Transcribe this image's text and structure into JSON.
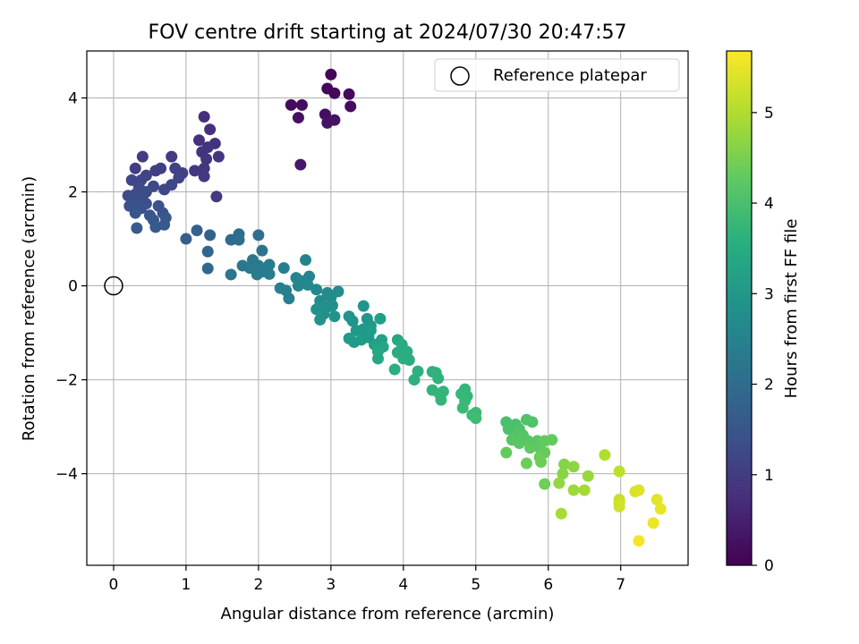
{
  "chart_data": {
    "type": "scatter",
    "title": "FOV centre drift starting at 2024/07/30 20:47:57",
    "xlabel": "Angular distance from reference (arcmin)",
    "ylabel": "Rotation from reference (arcmin)",
    "xlim": [
      -0.37,
      7.93
    ],
    "ylim": [
      -5.95,
      5.0
    ],
    "xticks": [
      0,
      1,
      2,
      3,
      4,
      5,
      6,
      7
    ],
    "yticks": [
      -4,
      -2,
      0,
      2,
      4
    ],
    "ytick_labels": [
      "−4",
      "−2",
      "0",
      "2",
      "4"
    ],
    "grid": true,
    "legend": {
      "placement": "top-right",
      "entries": [
        "Reference platepar"
      ]
    },
    "reference_point": {
      "x": 0,
      "y": 0,
      "label": "Reference platepar"
    },
    "colorbar": {
      "label": "Hours from first FF file",
      "colormap": "viridis",
      "range": [
        0,
        5.68
      ],
      "ticks": [
        0,
        1,
        2,
        3,
        4,
        5
      ]
    },
    "points": [
      {
        "x": 3.0,
        "y": 4.5,
        "c": 0.05
      },
      {
        "x": 2.95,
        "y": 4.2,
        "c": 0.08
      },
      {
        "x": 3.05,
        "y": 4.1,
        "c": 0.1
      },
      {
        "x": 3.25,
        "y": 4.08,
        "c": 0.12
      },
      {
        "x": 2.45,
        "y": 3.85,
        "c": 0.15
      },
      {
        "x": 2.6,
        "y": 3.85,
        "c": 0.17
      },
      {
        "x": 3.27,
        "y": 3.82,
        "c": 0.2
      },
      {
        "x": 2.92,
        "y": 3.65,
        "c": 0.22
      },
      {
        "x": 2.55,
        "y": 3.58,
        "c": 0.25
      },
      {
        "x": 3.05,
        "y": 3.53,
        "c": 0.27
      },
      {
        "x": 2.95,
        "y": 3.47,
        "c": 0.3
      },
      {
        "x": 2.58,
        "y": 2.58,
        "c": 0.35
      },
      {
        "x": 1.25,
        "y": 3.6,
        "c": 0.75
      },
      {
        "x": 1.33,
        "y": 3.33,
        "c": 0.78
      },
      {
        "x": 1.18,
        "y": 3.1,
        "c": 0.8
      },
      {
        "x": 1.4,
        "y": 3.03,
        "c": 0.82
      },
      {
        "x": 1.3,
        "y": 2.95,
        "c": 0.84
      },
      {
        "x": 1.22,
        "y": 2.85,
        "c": 0.86
      },
      {
        "x": 1.28,
        "y": 2.7,
        "c": 0.88
      },
      {
        "x": 1.45,
        "y": 2.75,
        "c": 0.9
      },
      {
        "x": 1.25,
        "y": 2.5,
        "c": 0.92
      },
      {
        "x": 1.12,
        "y": 2.45,
        "c": 0.94
      },
      {
        "x": 1.25,
        "y": 2.33,
        "c": 0.96
      },
      {
        "x": 1.42,
        "y": 1.9,
        "c": 0.98
      },
      {
        "x": 0.8,
        "y": 2.75,
        "c": 1.0
      },
      {
        "x": 0.4,
        "y": 2.75,
        "c": 1.02
      },
      {
        "x": 0.3,
        "y": 2.5,
        "c": 1.04
      },
      {
        "x": 0.65,
        "y": 2.5,
        "c": 1.06
      },
      {
        "x": 0.58,
        "y": 2.45,
        "c": 1.08
      },
      {
        "x": 0.85,
        "y": 2.5,
        "c": 1.1
      },
      {
        "x": 0.95,
        "y": 2.4,
        "c": 1.12
      },
      {
        "x": 0.9,
        "y": 2.3,
        "c": 1.14
      },
      {
        "x": 0.45,
        "y": 2.35,
        "c": 1.16
      },
      {
        "x": 0.38,
        "y": 2.25,
        "c": 1.18
      },
      {
        "x": 0.25,
        "y": 2.25,
        "c": 1.2
      },
      {
        "x": 0.8,
        "y": 2.15,
        "c": 1.22
      },
      {
        "x": 0.7,
        "y": 2.05,
        "c": 1.24
      },
      {
        "x": 0.55,
        "y": 2.12,
        "c": 1.26
      },
      {
        "x": 0.35,
        "y": 2.1,
        "c": 1.28
      },
      {
        "x": 0.45,
        "y": 2.0,
        "c": 1.3
      },
      {
        "x": 0.2,
        "y": 1.92,
        "c": 1.32
      },
      {
        "x": 0.3,
        "y": 1.95,
        "c": 1.34
      },
      {
        "x": 0.4,
        "y": 1.88,
        "c": 1.36
      },
      {
        "x": 0.3,
        "y": 1.8,
        "c": 1.38
      },
      {
        "x": 0.45,
        "y": 1.75,
        "c": 1.4
      },
      {
        "x": 0.22,
        "y": 1.7,
        "c": 1.42
      },
      {
        "x": 0.38,
        "y": 1.65,
        "c": 1.44
      },
      {
        "x": 0.62,
        "y": 1.7,
        "c": 1.46
      },
      {
        "x": 0.68,
        "y": 1.55,
        "c": 1.48
      },
      {
        "x": 0.5,
        "y": 1.5,
        "c": 1.5
      },
      {
        "x": 0.3,
        "y": 1.55,
        "c": 1.52
      },
      {
        "x": 0.72,
        "y": 1.45,
        "c": 1.54
      },
      {
        "x": 0.55,
        "y": 1.4,
        "c": 1.56
      },
      {
        "x": 0.7,
        "y": 1.3,
        "c": 1.58
      },
      {
        "x": 0.58,
        "y": 1.25,
        "c": 1.6
      },
      {
        "x": 0.32,
        "y": 1.23,
        "c": 1.62
      },
      {
        "x": 1.0,
        "y": 1.0,
        "c": 1.7
      },
      {
        "x": 1.15,
        "y": 1.18,
        "c": 1.75
      },
      {
        "x": 1.33,
        "y": 1.08,
        "c": 1.8
      },
      {
        "x": 1.3,
        "y": 0.73,
        "c": 1.85
      },
      {
        "x": 1.3,
        "y": 0.37,
        "c": 1.9
      },
      {
        "x": 1.62,
        "y": 0.98,
        "c": 1.95
      },
      {
        "x": 1.73,
        "y": 1.1,
        "c": 2.0
      },
      {
        "x": 1.73,
        "y": 0.98,
        "c": 2.05
      },
      {
        "x": 2.0,
        "y": 1.08,
        "c": 2.1
      },
      {
        "x": 2.05,
        "y": 0.75,
        "c": 2.15
      },
      {
        "x": 1.62,
        "y": 0.24,
        "c": 2.2
      },
      {
        "x": 1.78,
        "y": 0.43,
        "c": 2.25
      },
      {
        "x": 1.92,
        "y": 0.55,
        "c": 2.28
      },
      {
        "x": 1.88,
        "y": 0.38,
        "c": 2.3
      },
      {
        "x": 2.0,
        "y": 0.43,
        "c": 2.32
      },
      {
        "x": 2.05,
        "y": 0.3,
        "c": 2.34
      },
      {
        "x": 1.98,
        "y": 0.24,
        "c": 2.36
      },
      {
        "x": 2.15,
        "y": 0.45,
        "c": 2.38
      },
      {
        "x": 2.15,
        "y": 0.25,
        "c": 2.4
      },
      {
        "x": 2.35,
        "y": 0.38,
        "c": 2.42
      },
      {
        "x": 2.3,
        "y": -0.05,
        "c": 2.45
      },
      {
        "x": 2.38,
        "y": -0.1,
        "c": 2.48
      },
      {
        "x": 2.42,
        "y": -0.27,
        "c": 2.5
      },
      {
        "x": 2.65,
        "y": 0.55,
        "c": 2.55
      },
      {
        "x": 2.7,
        "y": 0.2,
        "c": 2.58
      },
      {
        "x": 2.52,
        "y": 0.17,
        "c": 2.6
      },
      {
        "x": 2.6,
        "y": 0.1,
        "c": 2.62
      },
      {
        "x": 2.55,
        "y": 0.0,
        "c": 2.64
      },
      {
        "x": 2.68,
        "y": 0.02,
        "c": 2.66
      },
      {
        "x": 2.8,
        "y": -0.08,
        "c": 2.68
      },
      {
        "x": 2.95,
        "y": -0.15,
        "c": 2.7
      },
      {
        "x": 2.85,
        "y": -0.32,
        "c": 2.72
      },
      {
        "x": 3.0,
        "y": -0.25,
        "c": 2.74
      },
      {
        "x": 3.1,
        "y": -0.12,
        "c": 2.76
      },
      {
        "x": 2.95,
        "y": -0.45,
        "c": 2.78
      },
      {
        "x": 2.85,
        "y": -0.42,
        "c": 2.8
      },
      {
        "x": 3.02,
        "y": -0.42,
        "c": 2.82
      },
      {
        "x": 2.8,
        "y": -0.5,
        "c": 2.84
      },
      {
        "x": 2.9,
        "y": -0.6,
        "c": 2.86
      },
      {
        "x": 2.85,
        "y": -0.72,
        "c": 2.88
      },
      {
        "x": 3.05,
        "y": -0.65,
        "c": 2.9
      },
      {
        "x": 3.25,
        "y": -0.65,
        "c": 2.92
      },
      {
        "x": 3.3,
        "y": -0.75,
        "c": 2.94
      },
      {
        "x": 3.45,
        "y": -0.43,
        "c": 2.96
      },
      {
        "x": 3.5,
        "y": -0.7,
        "c": 2.98
      },
      {
        "x": 3.35,
        "y": -0.95,
        "c": 3.0
      },
      {
        "x": 3.55,
        "y": -0.85,
        "c": 3.02
      },
      {
        "x": 3.45,
        "y": -0.92,
        "c": 3.04
      },
      {
        "x": 3.25,
        "y": -1.12,
        "c": 3.06
      },
      {
        "x": 3.32,
        "y": -1.2,
        "c": 3.08
      },
      {
        "x": 3.42,
        "y": -1.15,
        "c": 3.1
      },
      {
        "x": 3.52,
        "y": -1.1,
        "c": 3.12
      },
      {
        "x": 3.55,
        "y": -0.95,
        "c": 3.14
      },
      {
        "x": 3.68,
        "y": -0.7,
        "c": 3.16
      },
      {
        "x": 3.6,
        "y": -1.25,
        "c": 3.2
      },
      {
        "x": 3.7,
        "y": -1.15,
        "c": 3.24
      },
      {
        "x": 3.65,
        "y": -1.28,
        "c": 3.28
      },
      {
        "x": 3.72,
        "y": -1.3,
        "c": 3.32
      },
      {
        "x": 3.65,
        "y": -1.55,
        "c": 3.36
      },
      {
        "x": 3.65,
        "y": -1.4,
        "c": 3.38
      },
      {
        "x": 3.92,
        "y": -1.15,
        "c": 3.42
      },
      {
        "x": 3.98,
        "y": -1.25,
        "c": 3.45
      },
      {
        "x": 3.92,
        "y": -1.42,
        "c": 3.48
      },
      {
        "x": 4.05,
        "y": -1.4,
        "c": 3.5
      },
      {
        "x": 4.0,
        "y": -1.55,
        "c": 3.52
      },
      {
        "x": 4.08,
        "y": -1.58,
        "c": 3.54
      },
      {
        "x": 3.88,
        "y": -1.78,
        "c": 3.56
      },
      {
        "x": 4.2,
        "y": -1.82,
        "c": 3.58
      },
      {
        "x": 4.15,
        "y": -2.0,
        "c": 3.6
      },
      {
        "x": 4.4,
        "y": -1.83,
        "c": 3.62
      },
      {
        "x": 4.45,
        "y": -1.85,
        "c": 3.64
      },
      {
        "x": 4.48,
        "y": -1.97,
        "c": 3.66
      },
      {
        "x": 4.4,
        "y": -2.22,
        "c": 3.68
      },
      {
        "x": 4.55,
        "y": -2.25,
        "c": 3.7
      },
      {
        "x": 4.5,
        "y": -2.3,
        "c": 3.72
      },
      {
        "x": 4.52,
        "y": -2.43,
        "c": 3.74
      },
      {
        "x": 4.85,
        "y": -2.2,
        "c": 3.76
      },
      {
        "x": 4.8,
        "y": -2.3,
        "c": 3.78
      },
      {
        "x": 4.88,
        "y": -2.35,
        "c": 3.8
      },
      {
        "x": 4.85,
        "y": -2.45,
        "c": 3.82
      },
      {
        "x": 4.82,
        "y": -2.6,
        "c": 3.84
      },
      {
        "x": 5.0,
        "y": -2.7,
        "c": 3.86
      },
      {
        "x": 4.95,
        "y": -2.75,
        "c": 3.88
      },
      {
        "x": 5.0,
        "y": -2.82,
        "c": 3.9
      },
      {
        "x": 5.42,
        "y": -2.9,
        "c": 4.0
      },
      {
        "x": 5.55,
        "y": -2.95,
        "c": 4.02
      },
      {
        "x": 5.45,
        "y": -3.05,
        "c": 4.04
      },
      {
        "x": 5.6,
        "y": -3.05,
        "c": 4.06
      },
      {
        "x": 5.7,
        "y": -2.85,
        "c": 4.08
      },
      {
        "x": 5.78,
        "y": -2.9,
        "c": 4.1
      },
      {
        "x": 5.58,
        "y": -3.15,
        "c": 4.12
      },
      {
        "x": 5.65,
        "y": -3.18,
        "c": 4.14
      },
      {
        "x": 5.5,
        "y": -3.28,
        "c": 4.16
      },
      {
        "x": 5.6,
        "y": -3.35,
        "c": 4.18
      },
      {
        "x": 5.72,
        "y": -3.3,
        "c": 4.2
      },
      {
        "x": 5.85,
        "y": -3.3,
        "c": 4.22
      },
      {
        "x": 5.75,
        "y": -3.45,
        "c": 4.24
      },
      {
        "x": 5.88,
        "y": -3.45,
        "c": 4.26
      },
      {
        "x": 5.95,
        "y": -3.3,
        "c": 4.28
      },
      {
        "x": 6.05,
        "y": -3.28,
        "c": 4.3
      },
      {
        "x": 5.42,
        "y": -3.55,
        "c": 4.32
      },
      {
        "x": 5.95,
        "y": -3.55,
        "c": 4.34
      },
      {
        "x": 5.88,
        "y": -3.65,
        "c": 4.36
      },
      {
        "x": 5.7,
        "y": -3.78,
        "c": 4.38
      },
      {
        "x": 5.9,
        "y": -3.75,
        "c": 4.4
      },
      {
        "x": 5.95,
        "y": -4.22,
        "c": 4.42
      },
      {
        "x": 6.22,
        "y": -3.8,
        "c": 4.6
      },
      {
        "x": 6.2,
        "y": -4.0,
        "c": 4.65
      },
      {
        "x": 6.35,
        "y": -3.85,
        "c": 4.7
      },
      {
        "x": 6.15,
        "y": -4.2,
        "c": 4.75
      },
      {
        "x": 6.55,
        "y": -4.05,
        "c": 4.8
      },
      {
        "x": 6.35,
        "y": -4.35,
        "c": 4.85
      },
      {
        "x": 6.5,
        "y": -4.35,
        "c": 4.9
      },
      {
        "x": 6.18,
        "y": -4.85,
        "c": 4.95
      },
      {
        "x": 6.78,
        "y": -3.6,
        "c": 5.0
      },
      {
        "x": 6.98,
        "y": -3.95,
        "c": 5.1
      },
      {
        "x": 6.98,
        "y": -4.55,
        "c": 5.2
      },
      {
        "x": 6.98,
        "y": -4.62,
        "c": 5.25
      },
      {
        "x": 6.98,
        "y": -4.7,
        "c": 5.3
      },
      {
        "x": 7.2,
        "y": -4.38,
        "c": 5.35
      },
      {
        "x": 7.25,
        "y": -4.35,
        "c": 5.4
      },
      {
        "x": 7.5,
        "y": -4.55,
        "c": 5.45
      },
      {
        "x": 7.55,
        "y": -4.75,
        "c": 5.5
      },
      {
        "x": 7.45,
        "y": -5.05,
        "c": 5.55
      },
      {
        "x": 7.25,
        "y": -5.43,
        "c": 5.6
      }
    ]
  }
}
